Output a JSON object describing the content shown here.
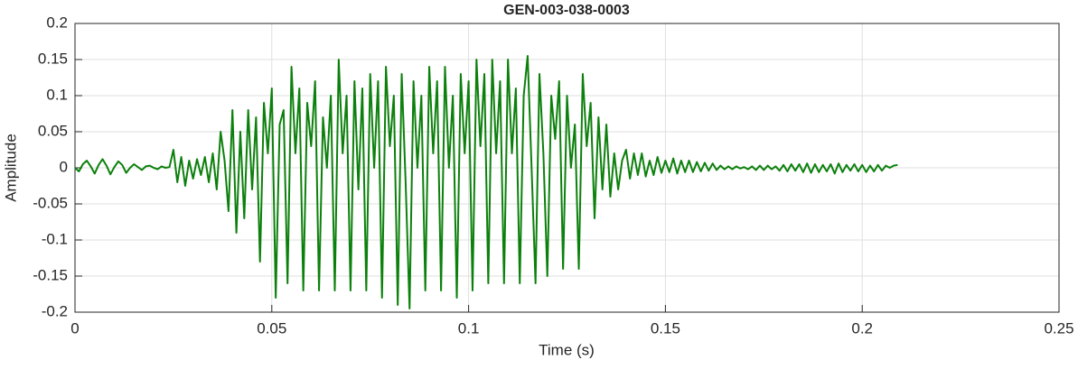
{
  "chart_data": {
    "type": "line",
    "title": "GEN-003-038-0003",
    "xlabel": "Time (s)",
    "ylabel": "Amplitude",
    "xlim": [
      0,
      0.25
    ],
    "ylim": [
      -0.2,
      0.2
    ],
    "xticks": [
      0,
      0.05,
      0.1,
      0.15,
      0.2,
      0.25
    ],
    "yticks": [
      -0.2,
      -0.15,
      -0.1,
      -0.05,
      0,
      0.05,
      0.1,
      0.15,
      0.2
    ],
    "grid": true,
    "x": [
      0,
      0.001,
      0.002,
      0.003,
      0.004,
      0.005,
      0.006,
      0.007,
      0.008,
      0.009,
      0.01,
      0.011,
      0.012,
      0.013,
      0.014,
      0.015,
      0.016,
      0.017,
      0.018,
      0.019,
      0.02,
      0.021,
      0.022,
      0.023,
      0.024,
      0.025,
      0.026,
      0.027,
      0.028,
      0.029,
      0.03,
      0.031,
      0.032,
      0.033,
      0.034,
      0.035,
      0.036,
      0.037,
      0.038,
      0.039,
      0.04,
      0.041,
      0.042,
      0.043,
      0.044,
      0.045,
      0.046,
      0.047,
      0.048,
      0.049,
      0.05,
      0.051,
      0.052,
      0.053,
      0.054,
      0.055,
      0.056,
      0.057,
      0.058,
      0.059,
      0.06,
      0.061,
      0.062,
      0.063,
      0.064,
      0.065,
      0.066,
      0.067,
      0.068,
      0.069,
      0.07,
      0.071,
      0.072,
      0.073,
      0.074,
      0.075,
      0.076,
      0.077,
      0.078,
      0.079,
      0.08,
      0.081,
      0.082,
      0.083,
      0.084,
      0.085,
      0.086,
      0.087,
      0.088,
      0.089,
      0.09,
      0.091,
      0.092,
      0.093,
      0.094,
      0.095,
      0.096,
      0.097,
      0.098,
      0.099,
      0.1,
      0.101,
      0.102,
      0.103,
      0.104,
      0.105,
      0.106,
      0.107,
      0.108,
      0.109,
      0.11,
      0.111,
      0.112,
      0.113,
      0.114,
      0.115,
      0.116,
      0.117,
      0.118,
      0.119,
      0.12,
      0.121,
      0.122,
      0.123,
      0.124,
      0.125,
      0.126,
      0.127,
      0.128,
      0.129,
      0.13,
      0.131,
      0.132,
      0.133,
      0.134,
      0.135,
      0.136,
      0.137,
      0.138,
      0.139,
      0.14,
      0.141,
      0.142,
      0.143,
      0.144,
      0.145,
      0.146,
      0.147,
      0.148,
      0.149,
      0.15,
      0.151,
      0.152,
      0.153,
      0.154,
      0.155,
      0.156,
      0.157,
      0.158,
      0.159,
      0.16,
      0.161,
      0.162,
      0.163,
      0.164,
      0.165,
      0.166,
      0.167,
      0.168,
      0.169,
      0.17,
      0.171,
      0.172,
      0.173,
      0.174,
      0.175,
      0.176,
      0.177,
      0.178,
      0.179,
      0.18,
      0.181,
      0.182,
      0.183,
      0.184,
      0.185,
      0.186,
      0.187,
      0.188,
      0.189,
      0.19,
      0.191,
      0.192,
      0.193,
      0.194,
      0.195,
      0.196,
      0.197,
      0.198,
      0.199,
      0.2,
      0.201,
      0.202,
      0.203,
      0.204,
      0.205,
      0.206,
      0.207,
      0.208,
      0.209
    ],
    "series": [
      {
        "color": "#0c800c",
        "values": [
          0,
          -0.005,
          0.005,
          0.01,
          0.002,
          -0.008,
          0.004,
          0.012,
          0.003,
          -0.009,
          0.001,
          0.009,
          0.004,
          -0.007,
          0,
          0.005,
          0.001,
          -0.003,
          0.002,
          0.003,
          0,
          -0.002,
          0.002,
          0,
          0.001,
          0.025,
          -0.02,
          0.015,
          -0.025,
          0.01,
          -0.015,
          0.012,
          -0.01,
          0.015,
          -0.02,
          0.02,
          -0.03,
          0.05,
          0.01,
          -0.06,
          0.08,
          -0.09,
          0.05,
          -0.07,
          0.08,
          -0.03,
          0.07,
          -0.13,
          0.09,
          0.02,
          0.11,
          -0.18,
          0.06,
          0.08,
          -0.16,
          0.14,
          0.02,
          0.11,
          -0.17,
          0.09,
          0.03,
          0.12,
          -0.17,
          0.07,
          0,
          0.1,
          -0.17,
          0.15,
          0.02,
          0.1,
          -0.17,
          0.12,
          -0.03,
          0.11,
          -0.17,
          0.13,
          0,
          0.12,
          -0.18,
          0.14,
          0.03,
          0.1,
          -0.19,
          0.13,
          -0.02,
          -0.195,
          0.12,
          0,
          0.1,
          -0.17,
          0.14,
          0.02,
          0.12,
          -0.17,
          0.14,
          0,
          0.1,
          -0.18,
          0.13,
          0.02,
          0.12,
          -0.17,
          0.15,
          0.03,
          0.13,
          -0.16,
          0.15,
          0.02,
          0.12,
          -0.16,
          0.15,
          0.02,
          0.11,
          -0.16,
          0.1,
          0.155,
          0,
          -0.16,
          0.13,
          0.02,
          -0.15,
          0.1,
          0.04,
          0.12,
          -0.14,
          0.1,
          0,
          0.06,
          -0.14,
          0.13,
          0.03,
          0.09,
          -0.07,
          0.07,
          -0.03,
          0.06,
          -0.04,
          0.02,
          -0.03,
          0.01,
          0.025,
          -0.015,
          0.02,
          -0.01,
          0.02,
          -0.012,
          0.01,
          -0.01,
          0.015,
          -0.007,
          0.01,
          -0.006,
          0.013,
          -0.008,
          0.01,
          -0.006,
          0.01,
          -0.006,
          0.008,
          -0.005,
          0.007,
          -0.004,
          0.006,
          -0.003,
          0.003,
          -0.002,
          0.002,
          -0.002,
          0.002,
          -0.001,
          0.001,
          -0.002,
          0.002,
          -0.003,
          0.003,
          -0.003,
          0.003,
          -0.002,
          0.002,
          -0.004,
          0.004,
          -0.005,
          0.005,
          -0.004,
          0.005,
          -0.006,
          0.006,
          -0.007,
          0.005,
          -0.006,
          0.004,
          -0.005,
          0.005,
          -0.008,
          0.006,
          -0.006,
          0.004,
          -0.004,
          0.005,
          -0.005,
          0.004,
          -0.006,
          0.003,
          -0.005,
          0.004,
          -0.004,
          0.003,
          0,
          0.003,
          0.004
        ]
      }
    ]
  }
}
